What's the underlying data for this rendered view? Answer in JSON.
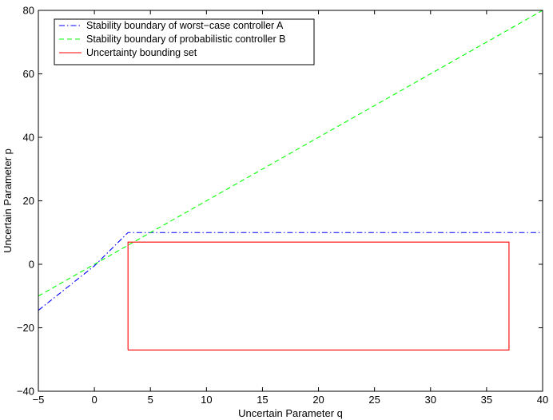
{
  "chart_data": {
    "type": "line",
    "title": "",
    "xlabel": "Uncertain Parameter q",
    "ylabel": "Uncertain Parameter p",
    "xlim": [
      -5,
      40
    ],
    "ylim": [
      -40,
      80
    ],
    "xticks": [
      -5,
      0,
      5,
      10,
      15,
      20,
      25,
      30,
      35,
      40
    ],
    "yticks": [
      -40,
      -20,
      0,
      20,
      40,
      60,
      80
    ],
    "grid": false,
    "legend_position": "top-left",
    "series": [
      {
        "name": "Stability boundary of worst−case controller A",
        "style": "dash-dot",
        "color": "#0000ff",
        "points": [
          [
            -5,
            -14.5
          ],
          [
            0,
            -0.5
          ],
          [
            3,
            10
          ],
          [
            40,
            10
          ]
        ]
      },
      {
        "name": "Stability boundary of probabilistic controller B",
        "style": "dashed",
        "color": "#00ff00",
        "points": [
          [
            -5,
            -10
          ],
          [
            40,
            80
          ]
        ]
      },
      {
        "name": "Uncertainty bounding set",
        "style": "solid",
        "color": "#ff0000",
        "points": [
          [
            3,
            -27
          ],
          [
            37,
            -27
          ],
          [
            37,
            7
          ],
          [
            3,
            7
          ],
          [
            3,
            -27
          ]
        ]
      }
    ]
  }
}
